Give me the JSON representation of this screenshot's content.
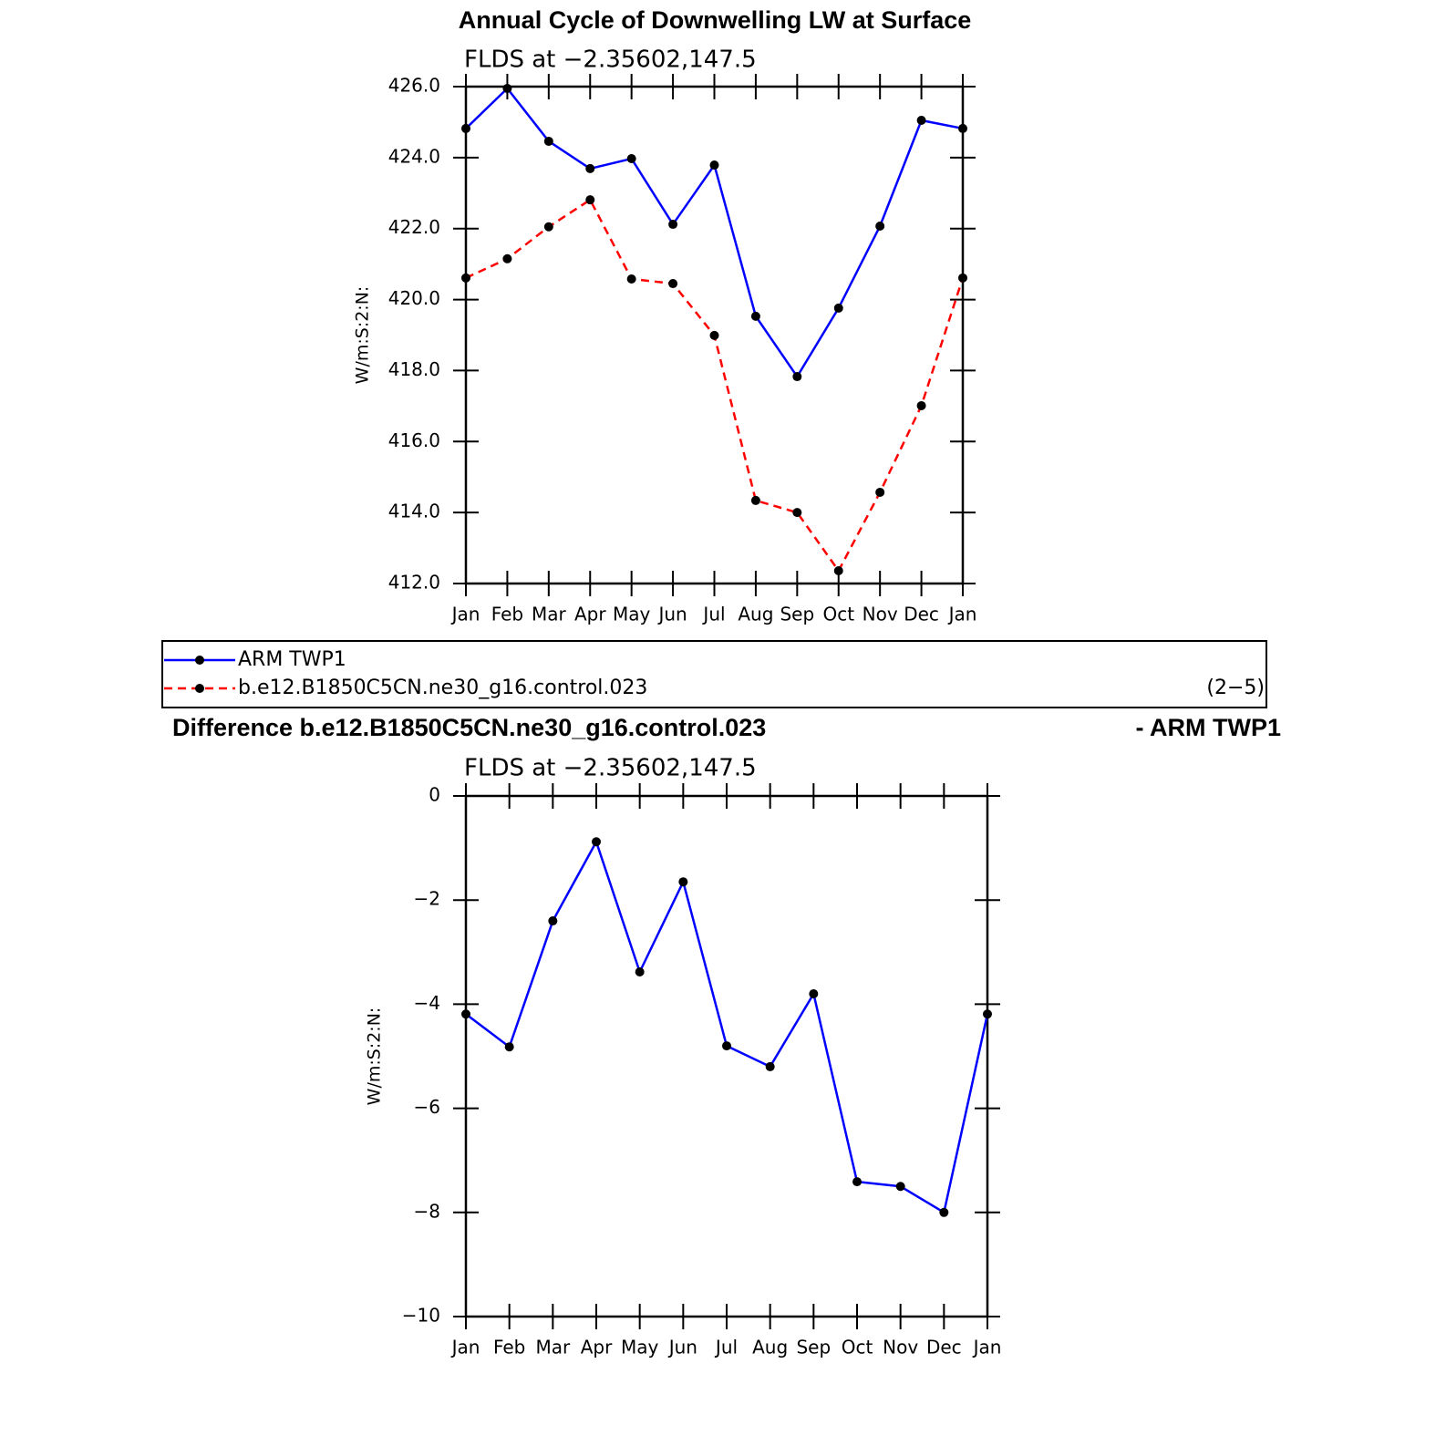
{
  "chart_data": [
    {
      "type": "line",
      "title": "Annual Cycle of Downwelling LW at Surface",
      "subtitle": "FLDS at −2.35602,147.5",
      "ylabel": "W/m:S:2:N:",
      "categories": [
        "Jan",
        "Feb",
        "Mar",
        "Apr",
        "May",
        "Jun",
        "Jul",
        "Aug",
        "Sep",
        "Oct",
        "Nov",
        "Dec",
        "Jan"
      ],
      "series": [
        {
          "name": "ARM TWP1",
          "color": "#0000ff",
          "dash": false,
          "values": [
            424.82,
            425.95,
            424.46,
            423.69,
            423.97,
            422.12,
            423.79,
            419.53,
            417.83,
            419.76,
            422.07,
            425.05,
            424.82
          ]
        },
        {
          "name": "b.e12.B1850C5CN.ne30_g16.control.023",
          "color": "#ff0000",
          "dash": true,
          "values": [
            420.61,
            421.15,
            422.05,
            422.81,
            420.58,
            420.45,
            418.99,
            414.34,
            414.0,
            412.36,
            414.57,
            417.01,
            420.61
          ]
        }
      ],
      "marker_color": "#000000",
      "ylim": [
        412,
        426
      ],
      "yticks": [
        {
          "value": 412,
          "label": "412.0"
        },
        {
          "value": 414,
          "label": "414.0"
        },
        {
          "value": 416,
          "label": "416.0"
        },
        {
          "value": 418,
          "label": "418.0"
        },
        {
          "value": 420,
          "label": "420.0"
        },
        {
          "value": 422,
          "label": "422.0"
        },
        {
          "value": 424,
          "label": "424.0"
        },
        {
          "value": 426,
          "label": "426.0"
        }
      ],
      "annotation": "(2−5)"
    },
    {
      "type": "line",
      "title": [
        "Difference b.e12.B1850C5CN.ne30_g16.control.023",
        "- ARM TWP1"
      ],
      "subtitle": "FLDS at −2.35602,147.5",
      "ylabel": "W/m:S:2:N:",
      "categories": [
        "Jan",
        "Feb",
        "Mar",
        "Apr",
        "May",
        "Jun",
        "Jul",
        "Aug",
        "Sep",
        "Oct",
        "Nov",
        "Dec",
        "Jan"
      ],
      "color": "#0000ff",
      "marker_color": "#000000",
      "values": [
        -4.19,
        -4.82,
        -2.4,
        -0.88,
        -3.38,
        -1.65,
        -4.8,
        -5.2,
        -3.8,
        -7.41,
        -7.5,
        -8.0,
        -4.19
      ],
      "ylim": [
        -10,
        0
      ],
      "yticks": [
        {
          "value": -10,
          "label": "−10"
        },
        {
          "value": -8,
          "label": "−8"
        },
        {
          "value": -6,
          "label": "−6"
        },
        {
          "value": -4,
          "label": "−4"
        },
        {
          "value": -2,
          "label": "−2"
        },
        0
      ]
    }
  ]
}
